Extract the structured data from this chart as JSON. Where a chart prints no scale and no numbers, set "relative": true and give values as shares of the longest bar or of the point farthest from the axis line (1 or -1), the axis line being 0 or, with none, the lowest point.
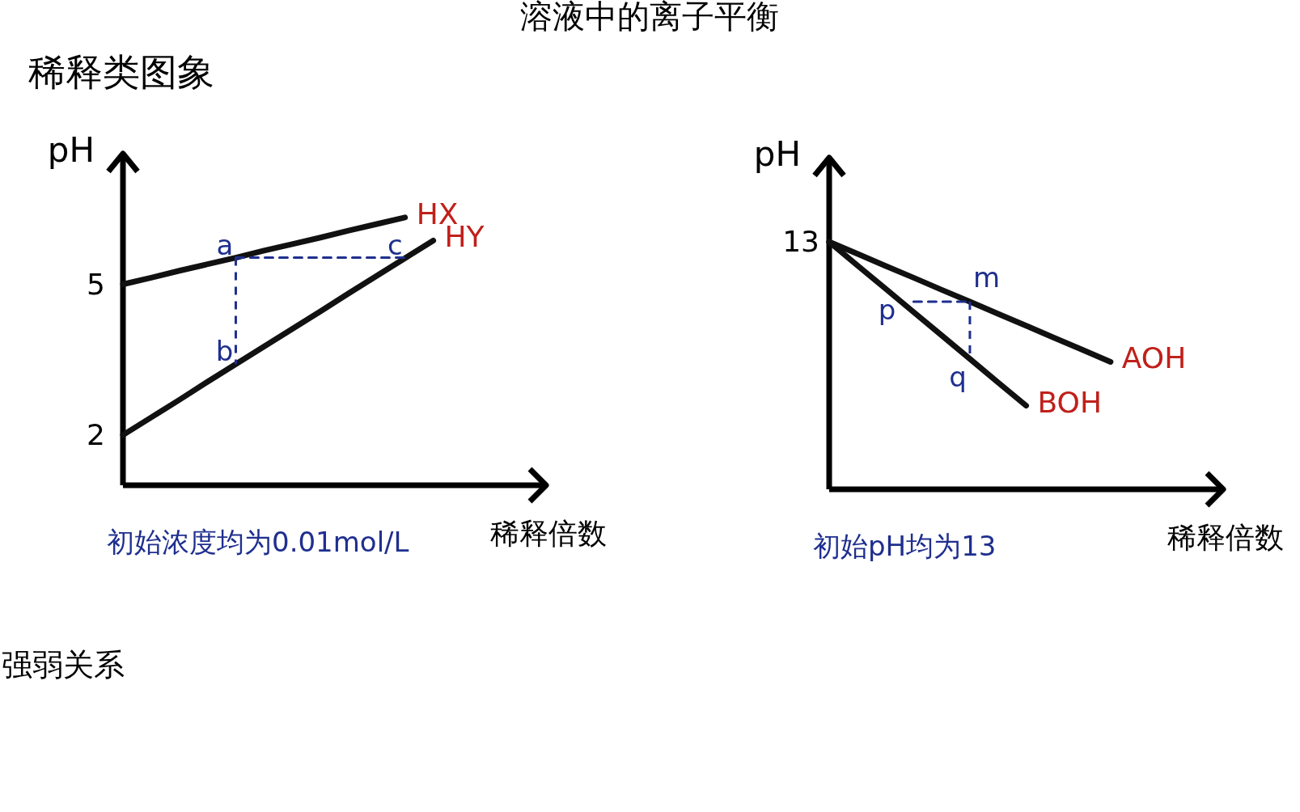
{
  "chart_data": [
    {
      "type": "line",
      "title": "溶液中的离子平衡",
      "subtitle": "稀释类图象",
      "xlabel": "稀释倍数",
      "ylabel": "pH",
      "categories": [
        null,
        null,
        null,
        null,
        null,
        null,
        null,
        null,
        null,
        null,
        null,
        null,
        null,
        null,
        null
      ],
      "ylim": [
        1,
        7.6
      ],
      "yticks": [
        2,
        5
      ],
      "tick_labels": "y",
      "series": [
        {
          "name": "HX",
          "color": "#111111",
          "values": [
            5,
            5.13,
            5.27,
            5.4,
            5.53,
            5.67,
            5.8,
            5.93,
            6.07,
            6.2,
            6.33,
            null,
            null,
            null,
            null
          ]
        },
        {
          "name": "HY",
          "color": "#111111",
          "values": [
            2,
            2.35,
            2.7,
            3.06,
            3.41,
            3.76,
            4.11,
            4.46,
            4.82,
            5.17,
            5.52,
            5.87,
            null,
            null,
            null
          ]
        },
        {
          "color": "#1f2f8f",
          "line_style": "dashed",
          "values": [
            null,
            null,
            null,
            null,
            5.53,
            5.53,
            5.53,
            5.53,
            5.53,
            5.53,
            5.53,
            null,
            null,
            null,
            null
          ]
        }
      ],
      "annotations": [
        {
          "text": "a",
          "y": 5.53
        },
        {
          "text": "b",
          "y": 3.41
        },
        {
          "text": "c",
          "y": 5.52
        },
        "初始浓度均为0.01mol/L",
        "强弱关系"
      ]
    },
    {
      "type": "line",
      "xlabel": "稀释倍数",
      "ylabel": "pH",
      "relative": true,
      "categories": [
        null,
        null,
        null,
        null,
        null,
        null,
        null,
        null,
        null,
        null,
        null,
        null,
        null,
        null
      ],
      "tick_labels": false,
      "series": [
        {
          "name": "AOH",
          "color": "#111111",
          "values": [
            1,
            0.952,
            0.903,
            0.855,
            0.806,
            0.758,
            0.709,
            0.661,
            0.612,
            0.564,
            0.515,
            null,
            null,
            null
          ]
        },
        {
          "name": "BOH",
          "color": "#111111",
          "values": [
            1,
            0.905,
            0.811,
            0.716,
            0.622,
            0.527,
            0.432,
            0.338,
            null,
            null,
            null,
            null,
            null,
            null
          ]
        },
        {
          "color": "#1f2f8f",
          "line_style": "dashed",
          "values": [
            null,
            null,
            null,
            0.758,
            0.758,
            0.758,
            null,
            null,
            null,
            null,
            null,
            null,
            null,
            null
          ]
        }
      ],
      "annotations": [
        "13",
        "m",
        "p",
        "q",
        "初始pH均为13"
      ]
    }
  ]
}
